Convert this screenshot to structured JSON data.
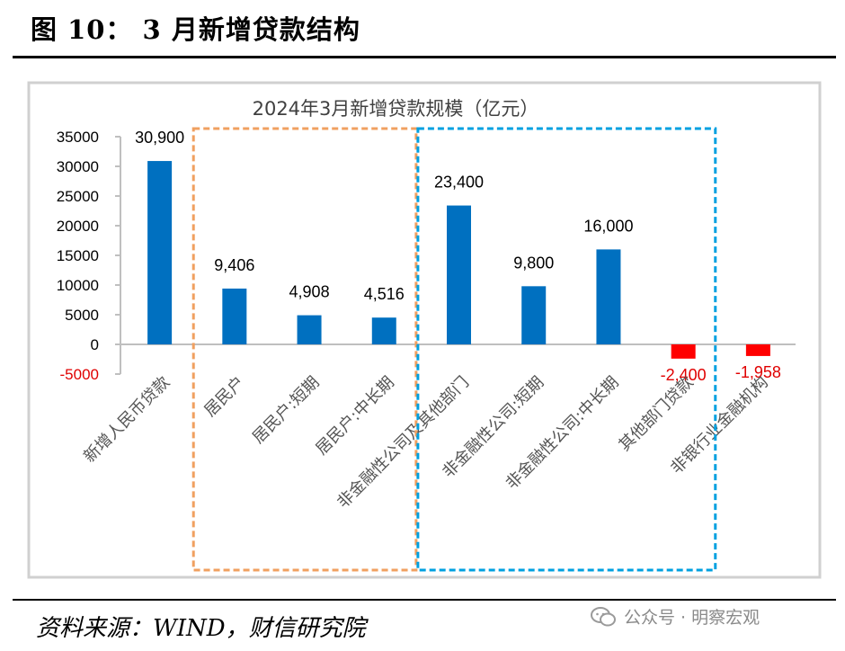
{
  "figure": {
    "title": "图 10： 3 月新增贷款结构",
    "source": "资料来源：WIND，财信研究院",
    "watermark": "公众号 · 明察宏观"
  },
  "colors": {
    "positive_bar": "#0070C0",
    "negative_bar": "#FF0000",
    "negative_label": "#E00000",
    "household_box": "#F0A060",
    "nonfinancial_box": "#00A0E0"
  },
  "chart_data": {
    "type": "bar",
    "title": "2024年3月新增贷款规模（亿元）",
    "categories": [
      "新增人民币贷款",
      "居民户",
      "居民户:短期",
      "居民户:中长期",
      "非金融性公司及其他部门",
      "非金融性公司:短期",
      "非金融性公司:中长期",
      "其他部门贷款",
      "非银行业金融机构"
    ],
    "values": [
      30900,
      9406,
      4908,
      4516,
      23400,
      9800,
      16000,
      -2400,
      -1958
    ],
    "data_labels": [
      "30,900",
      "9,406",
      "4,908",
      "4,516",
      "23,400",
      "9,800",
      "16,000",
      "-2,400",
      "-1,958"
    ],
    "ylim": [
      -5000,
      35000
    ],
    "yticks": [
      35000,
      30000,
      25000,
      20000,
      15000,
      10000,
      5000,
      0,
      -5000
    ],
    "ytick_labels": [
      "35000",
      "30000",
      "25000",
      "20000",
      "15000",
      "10000",
      "5000",
      "0",
      "-5000"
    ],
    "grid": false,
    "legend": "none",
    "xlabel": "",
    "ylabel": ""
  }
}
